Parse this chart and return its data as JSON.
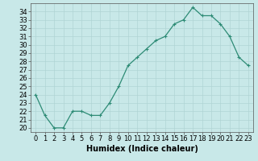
{
  "x": [
    0,
    1,
    2,
    3,
    4,
    5,
    6,
    7,
    8,
    9,
    10,
    11,
    12,
    13,
    14,
    15,
    16,
    17,
    18,
    19,
    20,
    21,
    22,
    23
  ],
  "y": [
    24.0,
    21.5,
    20.0,
    20.0,
    22.0,
    22.0,
    21.5,
    21.5,
    23.0,
    25.0,
    27.5,
    28.5,
    29.5,
    30.5,
    31.0,
    32.5,
    33.0,
    34.5,
    33.5,
    33.5,
    32.5,
    31.0,
    28.5,
    27.5
  ],
  "line_color": "#2d8b75",
  "marker": "+",
  "marker_size": 3,
  "bg_color": "#c8e8e8",
  "grid_color": "#b0d4d4",
  "xlabel": "Humidex (Indice chaleur)",
  "xlabel_fontsize": 7,
  "tick_fontsize": 6,
  "xlim": [
    -0.5,
    23.5
  ],
  "ylim": [
    19.5,
    35.0
  ],
  "yticks": [
    20,
    21,
    22,
    23,
    24,
    25,
    26,
    27,
    28,
    29,
    30,
    31,
    32,
    33,
    34
  ],
  "xticks": [
    0,
    1,
    2,
    3,
    4,
    5,
    6,
    7,
    8,
    9,
    10,
    11,
    12,
    13,
    14,
    15,
    16,
    17,
    18,
    19,
    20,
    21,
    22,
    23
  ]
}
